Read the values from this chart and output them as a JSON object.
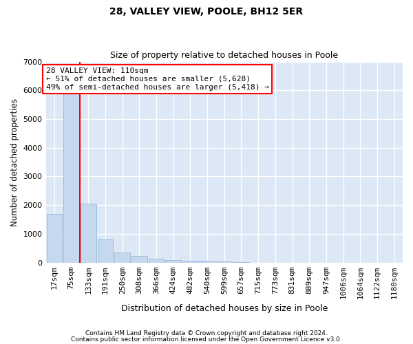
{
  "title": "28, VALLEY VIEW, POOLE, BH12 5ER",
  "subtitle": "Size of property relative to detached houses in Poole",
  "xlabel": "Distribution of detached houses by size in Poole",
  "ylabel": "Number of detached properties",
  "bar_color": "#c5d8ee",
  "bar_edge_color": "#9ab8d8",
  "background_color": "#dce8f5",
  "grid_color": "#ffffff",
  "categories": [
    "17sqm",
    "75sqm",
    "133sqm",
    "191sqm",
    "250sqm",
    "308sqm",
    "366sqm",
    "424sqm",
    "482sqm",
    "540sqm",
    "599sqm",
    "657sqm",
    "715sqm",
    "773sqm",
    "831sqm",
    "889sqm",
    "947sqm",
    "1006sqm",
    "1064sqm",
    "1122sqm",
    "1180sqm"
  ],
  "values": [
    1700,
    5900,
    2050,
    800,
    340,
    220,
    130,
    95,
    70,
    50,
    35,
    25,
    0,
    0,
    0,
    0,
    0,
    0,
    0,
    0,
    0
  ],
  "ylim": [
    0,
    7000
  ],
  "yticks": [
    0,
    1000,
    2000,
    3000,
    4000,
    5000,
    6000,
    7000
  ],
  "vline_x": 1.5,
  "annotation_title": "28 VALLEY VIEW: 110sqm",
  "annotation_line1": "← 51% of detached houses are smaller (5,628)",
  "annotation_line2": "49% of semi-detached houses are larger (5,418) →",
  "footer_line1": "Contains HM Land Registry data © Crown copyright and database right 2024.",
  "footer_line2": "Contains public sector information licensed under the Open Government Licence v3.0."
}
